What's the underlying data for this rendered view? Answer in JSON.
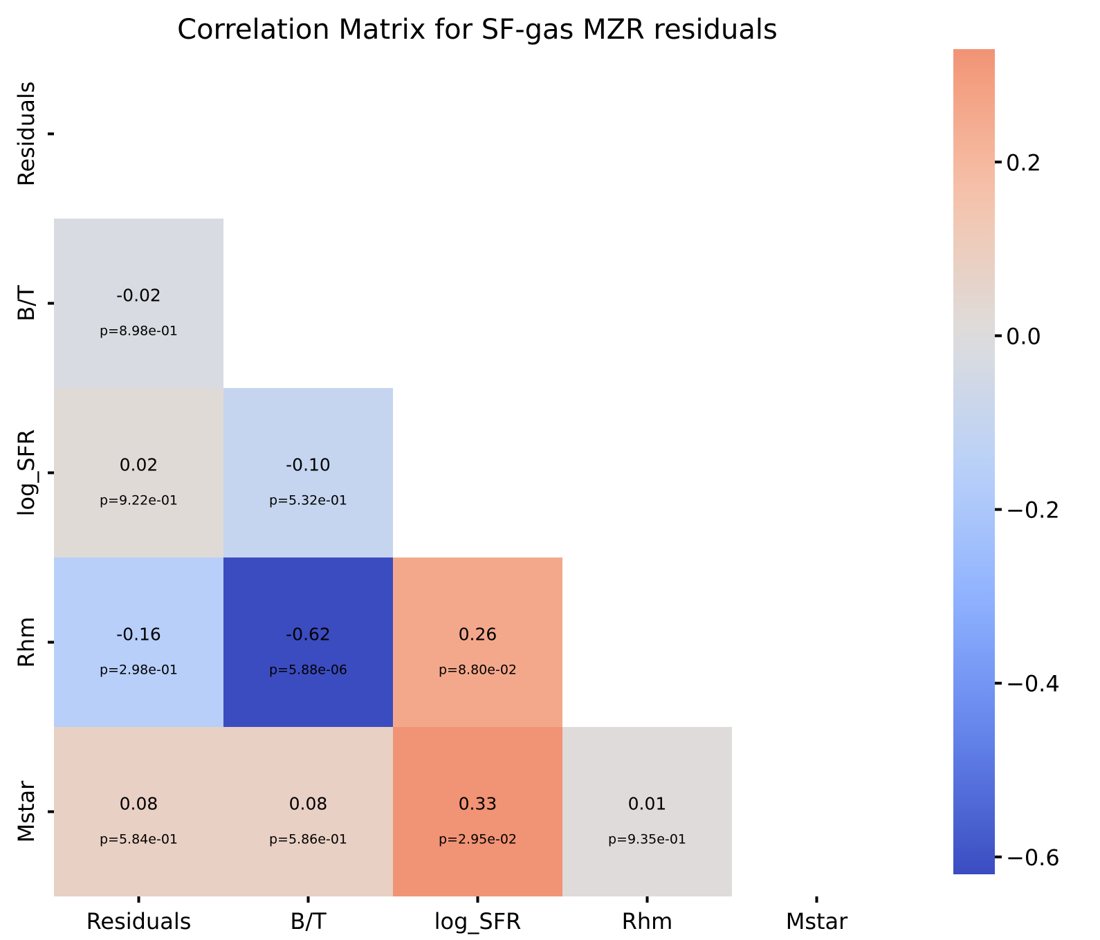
{
  "chart_data": {
    "type": "heatmap",
    "title": "Correlation Matrix for SF-gas MZR residuals",
    "variables": [
      "Residuals",
      "B/T",
      "log_SFR",
      "Rhm",
      "Mstar"
    ],
    "mask": "upper-triangle-including-diagonal",
    "cells": [
      {
        "row": 1,
        "col": 0,
        "r": -0.02,
        "r_label": "-0.02",
        "p_label": "p=8.98e-01"
      },
      {
        "row": 2,
        "col": 0,
        "r": 0.02,
        "r_label": "0.02",
        "p_label": "p=9.22e-01"
      },
      {
        "row": 2,
        "col": 1,
        "r": -0.1,
        "r_label": "-0.10",
        "p_label": "p=5.32e-01"
      },
      {
        "row": 3,
        "col": 0,
        "r": -0.16,
        "r_label": "-0.16",
        "p_label": "p=2.98e-01"
      },
      {
        "row": 3,
        "col": 1,
        "r": -0.62,
        "r_label": "-0.62",
        "p_label": "p=5.88e-06"
      },
      {
        "row": 3,
        "col": 2,
        "r": 0.26,
        "r_label": "0.26",
        "p_label": "p=8.80e-02"
      },
      {
        "row": 4,
        "col": 0,
        "r": 0.08,
        "r_label": "0.08",
        "p_label": "p=5.84e-01"
      },
      {
        "row": 4,
        "col": 1,
        "r": 0.08,
        "r_label": "0.08",
        "p_label": "p=5.86e-01"
      },
      {
        "row": 4,
        "col": 2,
        "r": 0.33,
        "r_label": "0.33",
        "p_label": "p=2.95e-02"
      },
      {
        "row": 4,
        "col": 3,
        "r": 0.01,
        "r_label": "0.01",
        "p_label": "p=9.35e-01"
      }
    ],
    "colormap": "coolwarm",
    "colorbar": {
      "vmin": -0.62,
      "vmax": 0.33,
      "ticks": [
        {
          "value": 0.2,
          "label": "0.2"
        },
        {
          "value": 0.0,
          "label": "0.0"
        },
        {
          "value": -0.2,
          "label": "−0.2"
        },
        {
          "value": -0.4,
          "label": "−0.4"
        },
        {
          "value": -0.6,
          "label": "−0.6"
        }
      ],
      "placement": "right"
    },
    "grid": false
  }
}
